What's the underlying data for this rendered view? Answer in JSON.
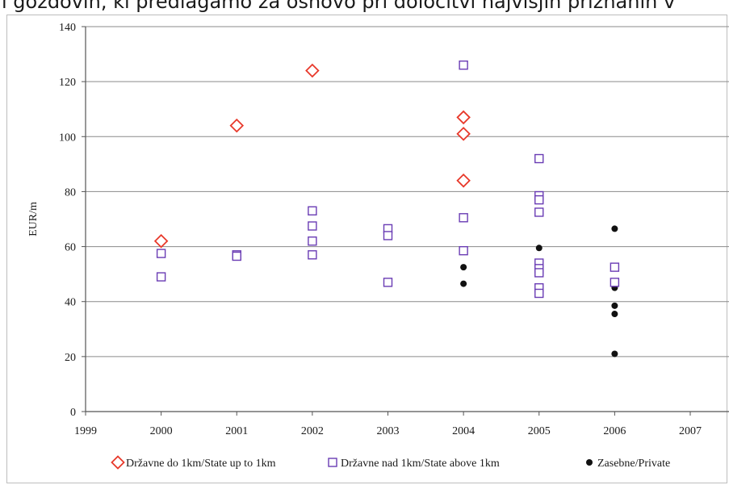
{
  "header": {
    "text": "i gozdovih, ki predlagamo za osnovo pri določitvi najvišjih priznanih v"
  },
  "chart_data": {
    "type": "scatter",
    "title": "",
    "xlabel": "",
    "ylabel": "EUR/m",
    "xlim": [
      1999,
      2007
    ],
    "ylim": [
      0,
      140
    ],
    "xticks": [
      1999,
      2000,
      2001,
      2002,
      2003,
      2004,
      2005,
      2006,
      2007
    ],
    "yticks": [
      0,
      20,
      40,
      60,
      80,
      100,
      120,
      140
    ],
    "grid": "horizontal",
    "legend_position": "bottom",
    "series": [
      {
        "name": "Državne do 1km/State up to 1km",
        "marker": "diamond-open",
        "color": "#e8392b",
        "points": [
          [
            2000,
            62
          ],
          [
            2001,
            104
          ],
          [
            2002,
            124
          ],
          [
            2004,
            107
          ],
          [
            2004,
            101
          ],
          [
            2004,
            84
          ]
        ]
      },
      {
        "name": "Državne nad 1km/State above 1km",
        "marker": "square-open",
        "color": "#6a3cb4",
        "points": [
          [
            2000,
            57.5
          ],
          [
            2000,
            49
          ],
          [
            2001,
            57
          ],
          [
            2001,
            56.5
          ],
          [
            2002,
            73
          ],
          [
            2002,
            67.5
          ],
          [
            2002,
            62
          ],
          [
            2002,
            57
          ],
          [
            2003,
            66.5
          ],
          [
            2003,
            64
          ],
          [
            2003,
            47
          ],
          [
            2004,
            126
          ],
          [
            2004,
            70.5
          ],
          [
            2004,
            58.5
          ],
          [
            2005,
            92
          ],
          [
            2005,
            78.5
          ],
          [
            2005,
            77
          ],
          [
            2005,
            72.5
          ],
          [
            2005,
            54
          ],
          [
            2005,
            52
          ],
          [
            2005,
            50.5
          ],
          [
            2005,
            45
          ],
          [
            2005,
            43
          ],
          [
            2006,
            52.5
          ],
          [
            2006,
            47
          ]
        ]
      },
      {
        "name": "Zasebne/Private",
        "marker": "circle-filled",
        "color": "#111111",
        "points": [
          [
            2004,
            52.5
          ],
          [
            2004,
            46.5
          ],
          [
            2005,
            59.5
          ],
          [
            2006,
            66.5
          ],
          [
            2006,
            45
          ],
          [
            2006,
            38.5
          ],
          [
            2006,
            35.5
          ],
          [
            2006,
            21
          ]
        ]
      }
    ]
  }
}
